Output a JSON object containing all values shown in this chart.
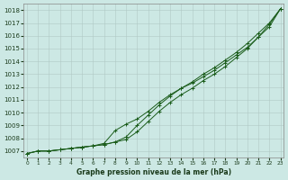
{
  "title": "Graphe pression niveau de la mer (hPa)",
  "bg_color": "#cce8e4",
  "grid_color": "#b0c8c4",
  "line_color": "#1a5c1a",
  "ylim": [
    1006.5,
    1018.5
  ],
  "xlim": [
    -0.3,
    23.3
  ],
  "yticks": [
    1007,
    1008,
    1009,
    1010,
    1011,
    1012,
    1013,
    1014,
    1015,
    1016,
    1017,
    1018
  ],
  "xticks": [
    0,
    1,
    2,
    3,
    4,
    5,
    6,
    7,
    8,
    9,
    10,
    11,
    12,
    13,
    14,
    15,
    16,
    17,
    18,
    19,
    20,
    21,
    22,
    23
  ],
  "line1": [
    1006.8,
    1007.0,
    1007.0,
    1007.1,
    1007.2,
    1007.3,
    1007.4,
    1007.5,
    1007.7,
    1007.9,
    1008.5,
    1009.3,
    1010.1,
    1010.8,
    1011.4,
    1011.9,
    1012.5,
    1013.0,
    1013.6,
    1014.3,
    1015.0,
    1015.9,
    1016.9,
    1018.1
  ],
  "line2": [
    1006.8,
    1007.0,
    1007.0,
    1007.1,
    1007.2,
    1007.3,
    1007.4,
    1007.5,
    1007.7,
    1008.1,
    1009.0,
    1009.8,
    1010.6,
    1011.3,
    1011.9,
    1012.4,
    1013.0,
    1013.5,
    1014.1,
    1014.7,
    1015.4,
    1016.2,
    1017.0,
    1018.1
  ],
  "line3": [
    1006.8,
    1007.0,
    1007.0,
    1007.1,
    1007.2,
    1007.3,
    1007.4,
    1007.6,
    1008.6,
    1009.1,
    1009.5,
    1010.1,
    1010.8,
    1011.4,
    1011.9,
    1012.3,
    1012.8,
    1013.3,
    1013.9,
    1014.5,
    1015.1,
    1015.9,
    1016.7,
    1018.1
  ]
}
